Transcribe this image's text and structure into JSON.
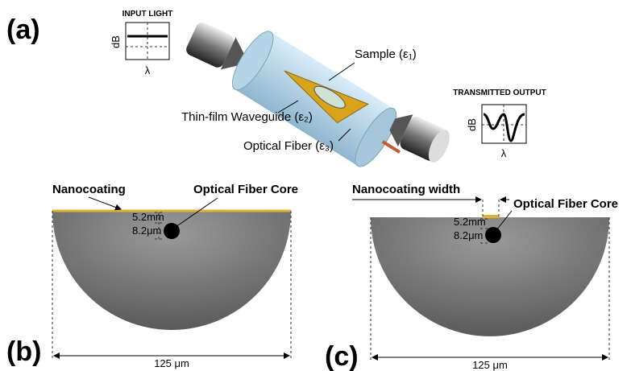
{
  "panel_a": {
    "label": "(a)",
    "input_light": {
      "title": "INPUT LIGHT",
      "y_label": "dB",
      "x_label": "λ"
    },
    "sample": "Sample (ε₁)",
    "waveguide": "Thin-film Waveguide (ε₂)",
    "fiber": "Optical Fiber (ε₃)",
    "output": {
      "title": "TRANSMITTED OUTPUT",
      "y_label": "dB",
      "x_label": "λ"
    }
  },
  "panel_b": {
    "label": "(b)",
    "nanocoating": "Nanocoating",
    "core": "Optical Fiber Core",
    "depth": "5.2mm",
    "core_size": "8.2μm",
    "diameter": "125 μm"
  },
  "panel_c": {
    "label": "(c)",
    "nanocoating": "Nanocoating width",
    "core": "Optical Fiber Core",
    "depth": "5.2mm",
    "core_size": "8.2μm",
    "diameter": "125 μm"
  }
}
